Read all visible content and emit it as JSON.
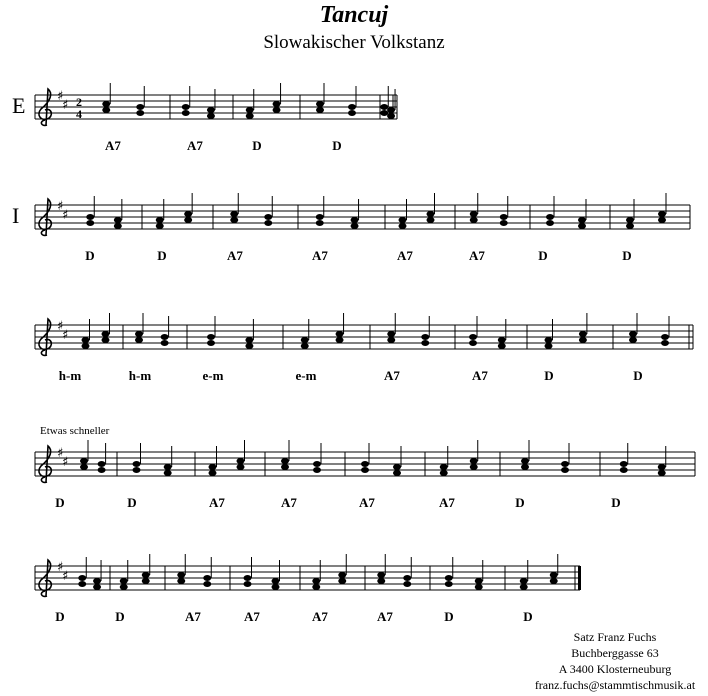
{
  "header": {
    "title": "Tancuj",
    "subtitle": "Slowakischer Volkstanz"
  },
  "systems": [
    {
      "label": "E",
      "time_signature": [
        "2",
        "4"
      ],
      "chords": [
        "A7",
        "A7",
        "D",
        "D"
      ]
    },
    {
      "label": "I",
      "chords": [
        "D",
        "D",
        "A7",
        "A7",
        "A7",
        "A7",
        "D",
        "D"
      ]
    },
    {
      "chords": [
        "h-m",
        "h-m",
        "e-m",
        "e-m",
        "A7",
        "A7",
        "D",
        "D"
      ]
    },
    {
      "tempo": "Etwas schneller",
      "chords": [
        "D",
        "D",
        "A7",
        "A7",
        "A7",
        "A7",
        "D",
        "D"
      ]
    },
    {
      "chords": [
        "D",
        "D",
        "A7",
        "A7",
        "A7",
        "A7",
        "D",
        "D"
      ]
    }
  ],
  "footer": [
    "Satz Franz Fuchs",
    "Buchberggasse 63",
    "A 3400 Klosterneuburg",
    "franz.fuchs@stammtischmusik.at"
  ]
}
